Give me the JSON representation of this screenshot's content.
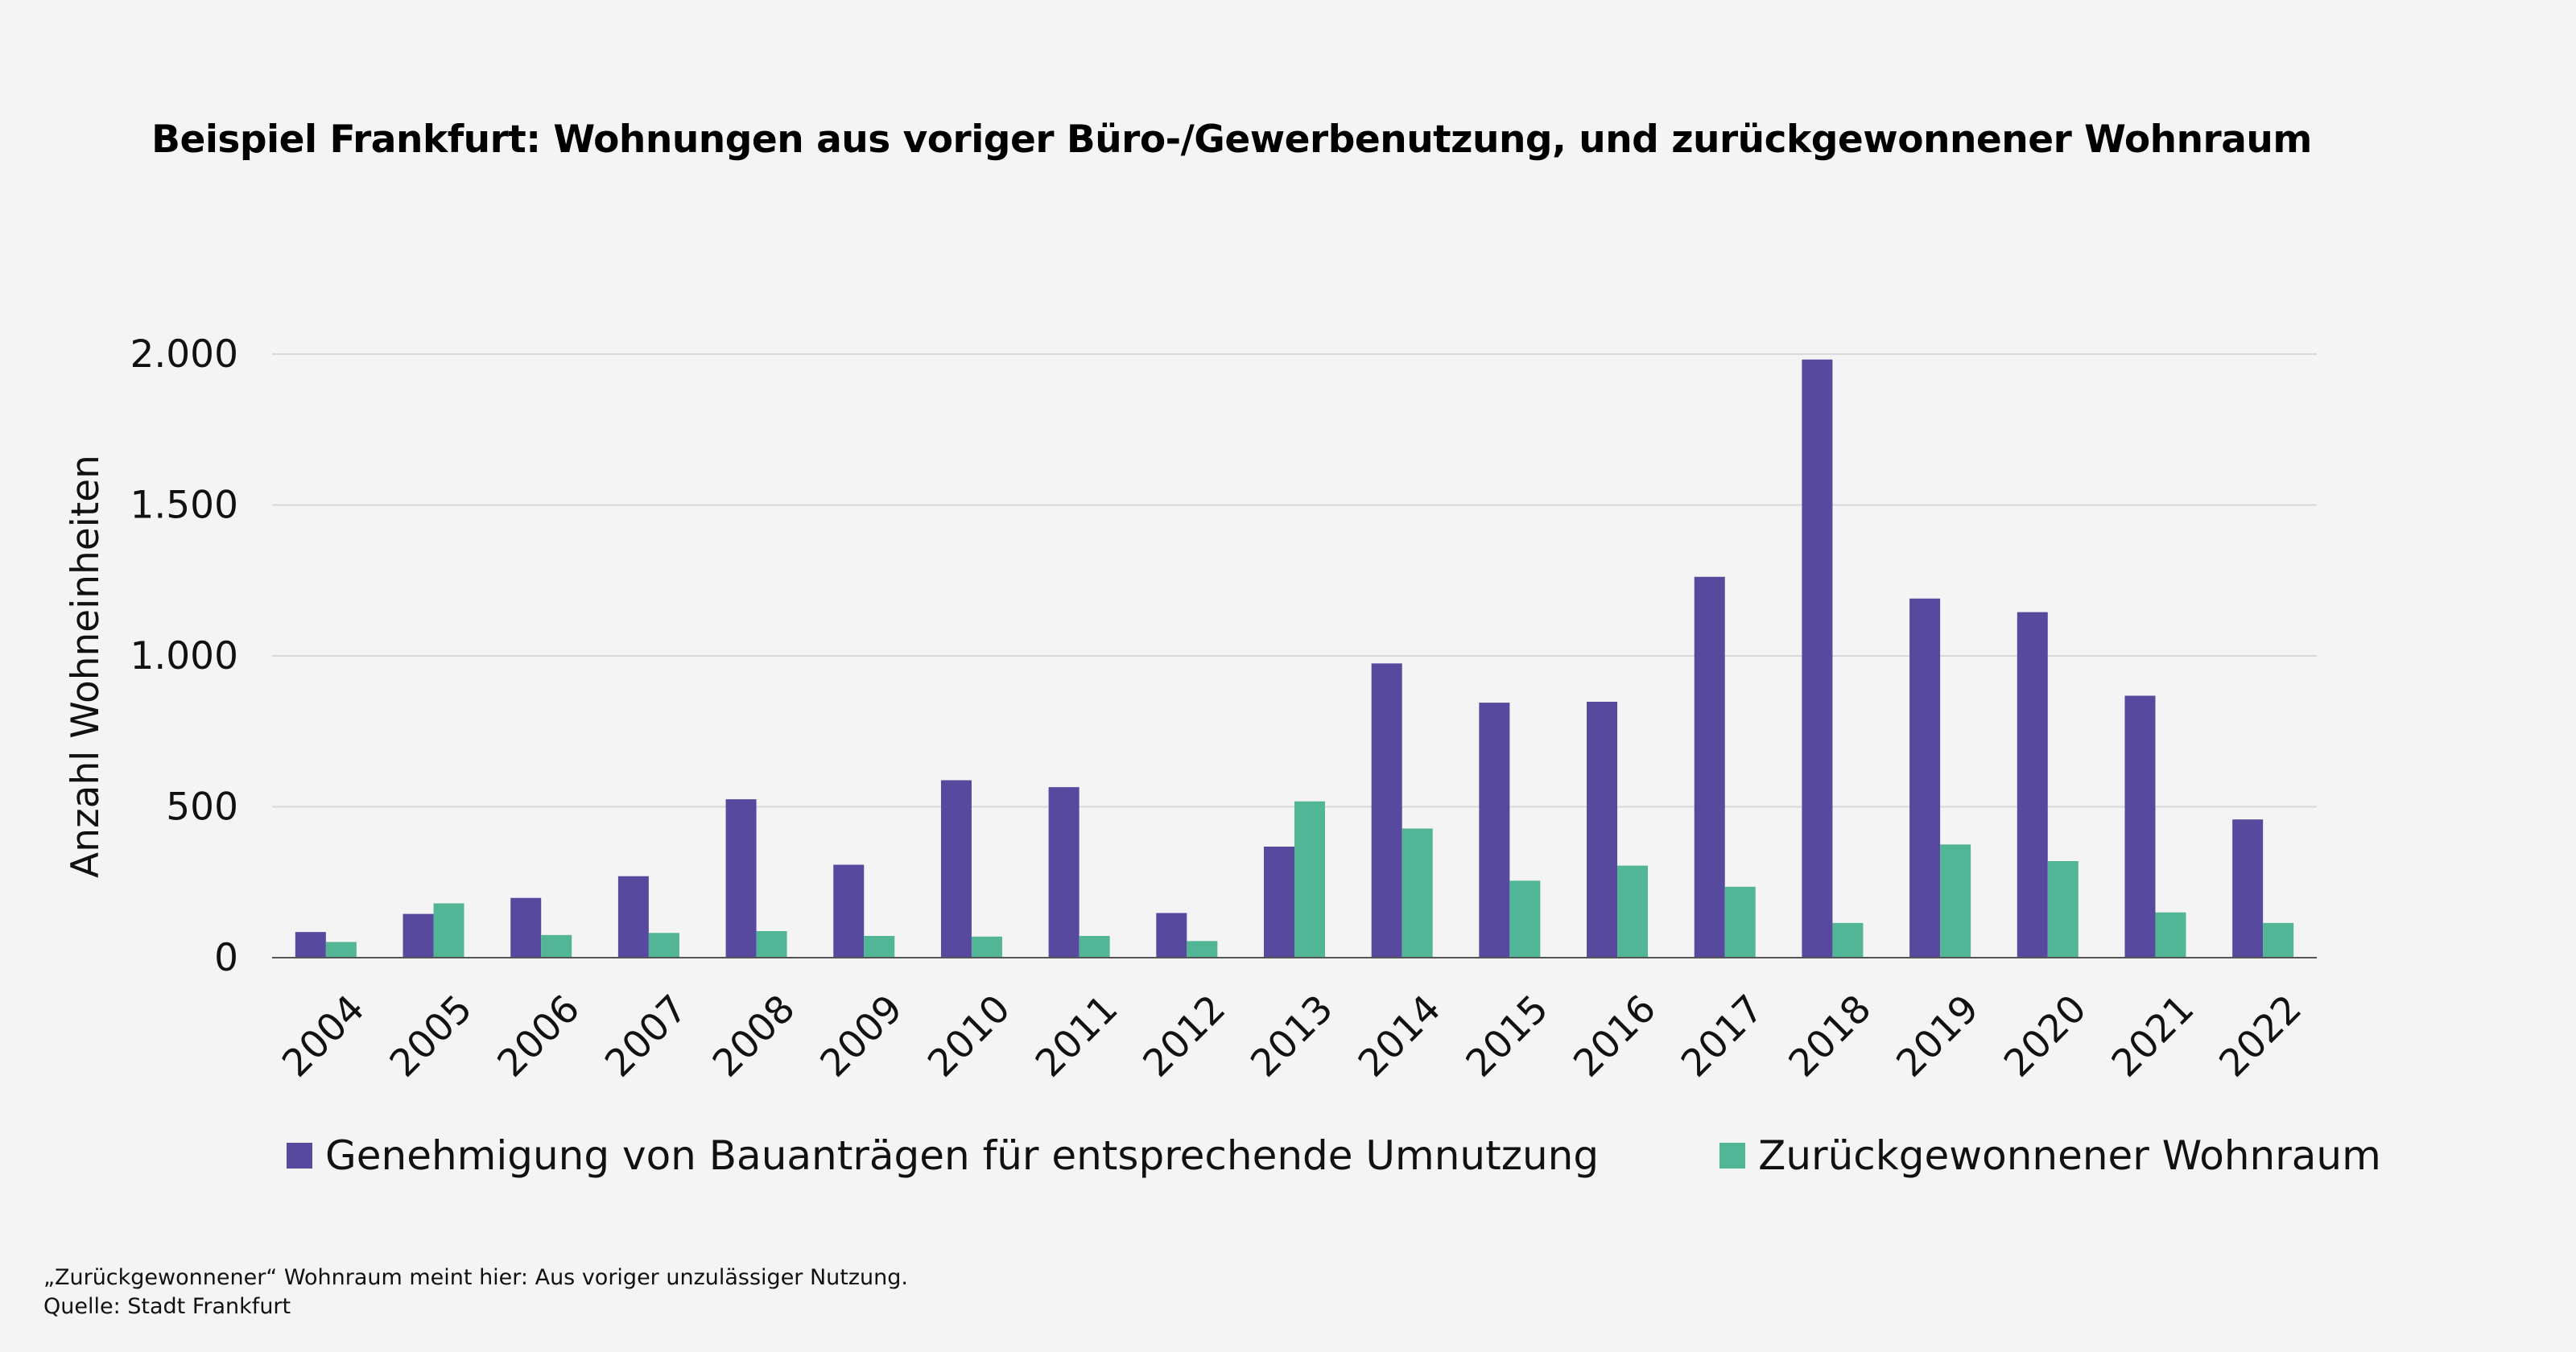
{
  "chart_data": {
    "type": "bar",
    "title": "Beispiel Frankfurt: Wohnungen aus voriger Büro-/Gewerbenutzung, und zurückgewonnener Wohnraum",
    "ylabel": "Anzahl Wohneinheiten",
    "xlabel": "",
    "ylim": [
      0,
      2000
    ],
    "yticks": [
      0,
      500,
      1000,
      1500,
      2000
    ],
    "ytick_labels": [
      "0",
      "500",
      "1.000",
      "1.500",
      "2.000"
    ],
    "grid": true,
    "legend_position": "bottom",
    "categories": [
      "2004",
      "2005",
      "2006",
      "2007",
      "2008",
      "2009",
      "2010",
      "2011",
      "2012",
      "2013",
      "2014",
      "2015",
      "2016",
      "2017",
      "2018",
      "2019",
      "2020",
      "2021",
      "2022"
    ],
    "series": [
      {
        "name": "Genehmigung von Bauanträgen für entsprechende Umnutzung",
        "color": "#574a9e",
        "values": [
          85,
          145,
          198,
          270,
          525,
          308,
          588,
          565,
          148,
          368,
          975,
          845,
          848,
          1262,
          1982,
          1190,
          1145,
          868,
          458
        ]
      },
      {
        "name": "Zurückgewonnener Wohnraum",
        "color": "#52b596",
        "values": [
          52,
          180,
          75,
          82,
          88,
          72,
          70,
          72,
          55,
          518,
          428,
          255,
          305,
          235,
          115,
          375,
          320,
          150,
          115
        ]
      }
    ]
  },
  "footnotes": {
    "note": "„Zurückgewonnener“ Wohnraum meint hier: Aus voriger unzulässiger Nutzung.",
    "source": "Quelle: Stadt Frankfurt"
  }
}
